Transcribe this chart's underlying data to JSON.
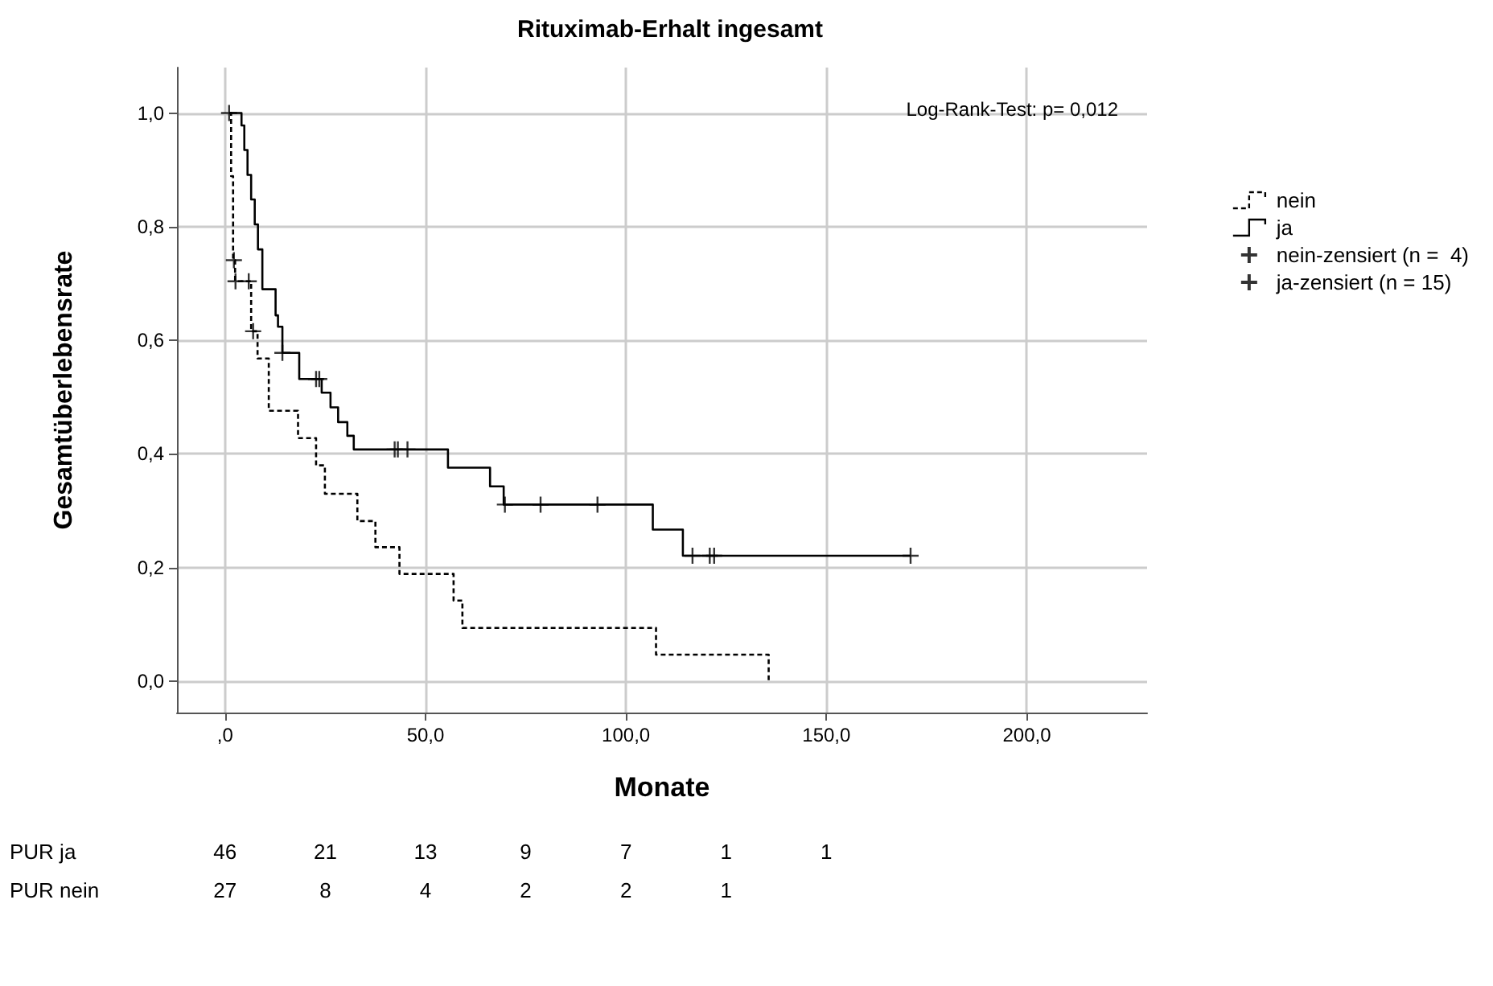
{
  "chart_data": {
    "type": "step",
    "title": "Rituximab-Erhalt ingesamt",
    "xlabel": "Monate",
    "ylabel": "Gesamtüberlebensrate",
    "xlim": [
      -12,
      230
    ],
    "ylim": [
      -0.055,
      1.08
    ],
    "xticks": [
      {
        "value": 0,
        "label": ",0"
      },
      {
        "value": 50,
        "label": "50,0"
      },
      {
        "value": 100,
        "label": "100,0"
      },
      {
        "value": 150,
        "label": "150,0"
      },
      {
        "value": 200,
        "label": "200,0"
      }
    ],
    "yticks": [
      {
        "value": 0,
        "label": "0,0"
      },
      {
        "value": 0.2,
        "label": "0,2"
      },
      {
        "value": 0.4,
        "label": "0,4"
      },
      {
        "value": 0.6,
        "label": "0,6"
      },
      {
        "value": 0.8,
        "label": "0,8"
      },
      {
        "value": 1,
        "label": "1,0"
      }
    ],
    "grid": true,
    "legend": "top right",
    "annotations": [
      "Log-Rank-Test: p= 0,012",
      "PUR ja",
      "46",
      "21",
      "13",
      "9",
      "7",
      "1",
      "1",
      "PUR nein",
      "27",
      "8",
      "4",
      "2",
      "2",
      "1"
    ],
    "series": [
      {
        "name": "nein",
        "color": "#000000",
        "line_style": "dashed",
        "x": [
          1,
          1.5,
          2,
          2.5,
          6.5,
          8.1,
          10.9,
          18.2,
          22.7,
          24.9,
          33.0,
          37.5,
          43.5,
          57.0,
          59.2,
          107.5,
          135.6
        ],
        "values": [
          1.0,
          0.889,
          0.741,
          0.704,
          0.616,
          0.568,
          0.476,
          0.428,
          0.38,
          0.33,
          0.282,
          0.236,
          0.189,
          0.142,
          0.094,
          0.047,
          0.0
        ]
      },
      {
        "name": "ja",
        "color": "#000000",
        "line_style": "solid",
        "x": [
          1,
          4.1,
          4.8,
          5.6,
          6.5,
          7.4,
          8.2,
          9.3,
          12.6,
          13.2,
          14.3,
          18.5,
          24.1,
          26.3,
          28.2,
          30.5,
          32.1,
          55.6,
          66.1,
          69.5,
          106.7,
          114.2,
          171.0
        ],
        "values": [
          1.0,
          0.978,
          0.935,
          0.891,
          0.848,
          0.804,
          0.76,
          0.69,
          0.644,
          0.624,
          0.578,
          0.532,
          0.508,
          0.482,
          0.456,
          0.432,
          0.408,
          0.376,
          0.343,
          0.311,
          0.267,
          0.221,
          0.221
        ]
      },
      {
        "name": "nein-zensiert (n =  4)",
        "type": "scatter",
        "marker": "cross",
        "color": "#000000",
        "x": [
          2.2,
          2.6,
          5.9,
          7.0
        ],
        "values": [
          0.741,
          0.704,
          0.704,
          0.616
        ]
      },
      {
        "name": "ja-zensiert (n = 15)",
        "type": "scatter",
        "marker": "cross",
        "color": "#000000",
        "x": [
          1,
          14.3,
          22.7,
          23.5,
          42.3,
          43.1,
          45.5,
          69.8,
          78.7,
          92.9,
          116.6,
          120.9,
          122.0,
          171.0
        ],
        "values": [
          1.0,
          0.578,
          0.532,
          0.532,
          0.408,
          0.408,
          0.408,
          0.311,
          0.311,
          0.311,
          0.221,
          0.221,
          0.221,
          0.221
        ]
      }
    ]
  }
}
